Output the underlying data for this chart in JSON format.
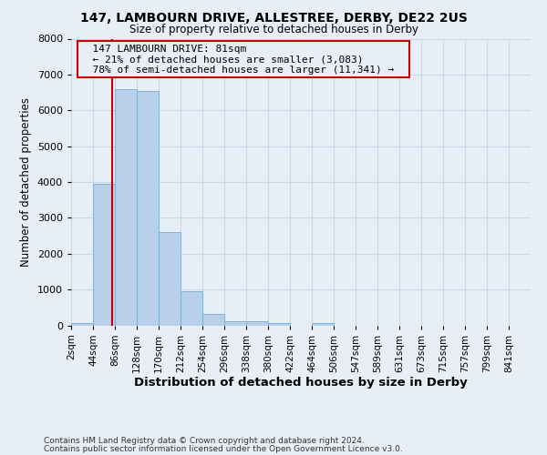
{
  "title1": "147, LAMBOURN DRIVE, ALLESTREE, DERBY, DE22 2US",
  "title2": "Size of property relative to detached houses in Derby",
  "xlabel": "Distribution of detached houses by size in Derby",
  "ylabel": "Number of detached properties",
  "footer1": "Contains HM Land Registry data © Crown copyright and database right 2024.",
  "footer2": "Contains public sector information licensed under the Open Government Licence v3.0.",
  "annotation_line1": "147 LAMBOURN DRIVE: 81sqm",
  "annotation_line2": "← 21% of detached houses are smaller (3,083)",
  "annotation_line3": "78% of semi-detached houses are larger (11,341) →",
  "property_size": 81,
  "bin_starts": [
    2,
    44,
    86,
    128,
    170,
    212,
    254,
    296,
    338,
    380,
    422,
    464,
    506,
    547,
    589,
    631,
    673,
    715,
    757,
    799
  ],
  "bin_labels": [
    "2sqm",
    "44sqm",
    "86sqm",
    "128sqm",
    "170sqm",
    "212sqm",
    "254sqm",
    "296sqm",
    "338sqm",
    "380sqm",
    "422sqm",
    "464sqm",
    "506sqm",
    "547sqm",
    "589sqm",
    "631sqm",
    "673sqm",
    "715sqm",
    "757sqm",
    "799sqm",
    "841sqm"
  ],
  "bar_heights": [
    55,
    3950,
    6600,
    6550,
    2600,
    950,
    320,
    115,
    110,
    70,
    0,
    70,
    0,
    0,
    0,
    0,
    0,
    0,
    0,
    0
  ],
  "bar_color": "#b8d0ea",
  "bar_edge_color": "#7aabcf",
  "grid_color": "#c8d8e8",
  "annotation_box_color": "#cc0000",
  "vline_color": "#cc0000",
  "ylim": [
    0,
    8000
  ],
  "yticks": [
    0,
    1000,
    2000,
    3000,
    4000,
    5000,
    6000,
    7000,
    8000
  ],
  "background_color": "#e8eef6"
}
